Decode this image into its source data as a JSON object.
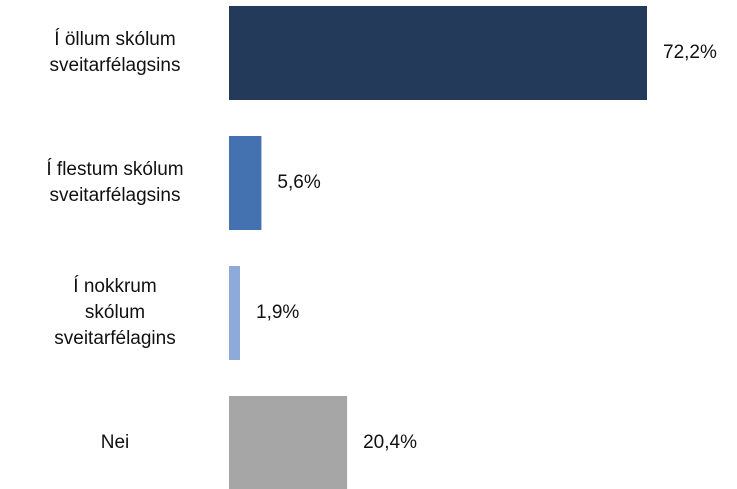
{
  "chart_data": {
    "type": "hbar",
    "categories": [
      "Í öllum skólum\nsveitarfélagsins",
      "Í flestum skólum\nsveitarfélagsins",
      "Í nokkrum\nskólum\nsveitarfélagins",
      "Nei"
    ],
    "values": [
      72.2,
      5.6,
      1.9,
      20.4
    ],
    "value_labels": [
      "72,2%",
      "5,6%",
      "1,9%",
      "20,4%"
    ],
    "colors": [
      "#243a5a",
      "#4472b0",
      "#8eaad8",
      "#a6a6a6"
    ]
  }
}
